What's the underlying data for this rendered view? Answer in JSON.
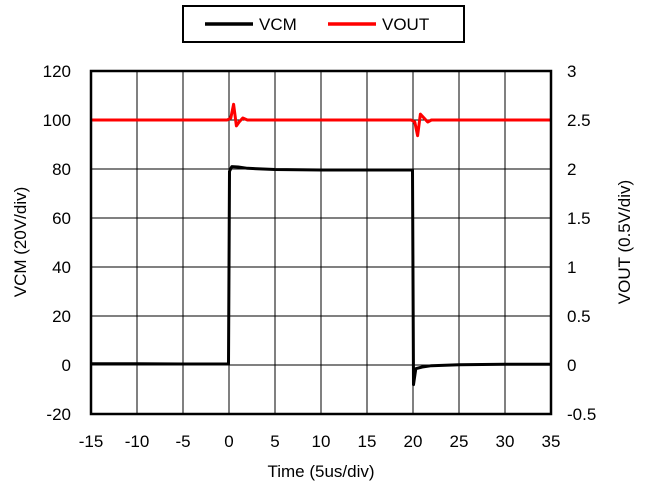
{
  "chart_data": {
    "type": "line",
    "xlabel": "Time (5us/div)",
    "ylabel_left": "VCM (20V/div)",
    "ylabel_right": "VOUT (0.5V/div)",
    "xlim": [
      -15,
      35
    ],
    "ylim_left": [
      -20,
      120
    ],
    "ylim_right": [
      -0.5,
      3
    ],
    "x_ticks": [
      -15,
      -10,
      -5,
      0,
      5,
      10,
      15,
      20,
      25,
      30,
      35
    ],
    "y_left_ticks": [
      -20,
      0,
      20,
      40,
      60,
      80,
      100,
      120
    ],
    "y_right_ticks": [
      "-0.5",
      "0",
      "0.5",
      "1",
      "1.5",
      "2",
      "2.5",
      "3"
    ],
    "grid": true,
    "legend_position": "top-center",
    "series": [
      {
        "name": "VCM",
        "axis": "left",
        "color": "#000000",
        "x": [
          -15,
          -10,
          -5,
          -0.05,
          0.05,
          0.3,
          1,
          2,
          5,
          10,
          15,
          19.95,
          20.05,
          20.3,
          21,
          22,
          25,
          30,
          35
        ],
        "y": [
          0.5,
          0.5,
          0.4,
          0.4,
          79,
          81,
          80.8,
          80.3,
          79.8,
          79.6,
          79.6,
          79.6,
          -8,
          -1.5,
          -0.8,
          -0.3,
          0.1,
          0.3,
          0.3
        ]
      },
      {
        "name": "VOUT",
        "axis": "right",
        "color": "#ff0000",
        "x": [
          -15,
          -1,
          -0.2,
          0.2,
          0.5,
          0.8,
          1.1,
          1.5,
          2,
          5,
          10,
          19.8,
          20.2,
          20.5,
          20.8,
          21.2,
          21.6,
          22,
          25,
          30,
          35
        ],
        "y": [
          2.5,
          2.5,
          2.5,
          2.52,
          2.66,
          2.44,
          2.48,
          2.52,
          2.5,
          2.5,
          2.5,
          2.5,
          2.48,
          2.34,
          2.56,
          2.52,
          2.48,
          2.5,
          2.5,
          2.5,
          2.5
        ]
      }
    ]
  }
}
